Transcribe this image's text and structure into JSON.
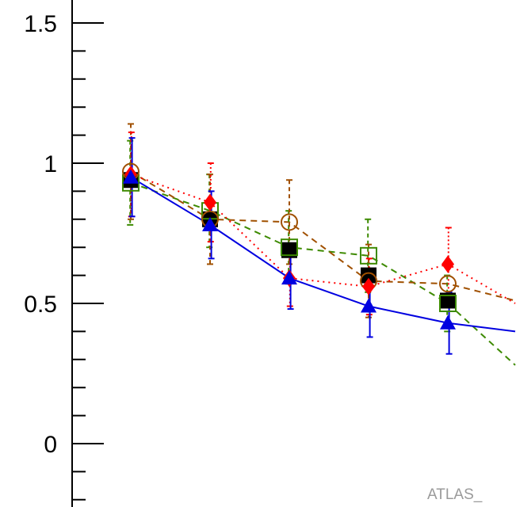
{
  "chart_data": {
    "type": "scatter",
    "title": "",
    "xlabel": "",
    "ylabel": "",
    "ylim": [
      -0.2,
      1.65
    ],
    "x": [
      1,
      2,
      3,
      4,
      5,
      5.85
    ],
    "y_major_ticks": [
      {
        "value": 0,
        "label": "0"
      },
      {
        "value": 0.5,
        "label": "0.5"
      },
      {
        "value": 1,
        "label": "1"
      },
      {
        "value": 1.5,
        "label": "1.5"
      }
    ],
    "y_minor_tick_step": 0.1,
    "grid": false,
    "legend": "none",
    "series": [
      {
        "marker": "filled-square",
        "color": "#000000",
        "line": "none",
        "values": [
          0.94,
          0.8,
          0.69,
          0.6,
          0.51,
          null
        ],
        "errors": [
          0.0,
          0.0,
          0.0,
          0.0,
          0.0,
          null
        ]
      },
      {
        "marker": "open-square",
        "color": "#3d8a00",
        "line": "dashed",
        "values": [
          0.93,
          0.83,
          0.7,
          0.67,
          0.5,
          0.28
        ],
        "errors": [
          0.15,
          0.13,
          0.13,
          0.13,
          0.1,
          null
        ]
      },
      {
        "marker": "open-circle",
        "color": "#a05000",
        "line": "dashed",
        "values": [
          0.97,
          0.8,
          0.79,
          0.58,
          0.57,
          0.51
        ],
        "errors": [
          0.17,
          0.16,
          0.15,
          0.13,
          0.0,
          null
        ]
      },
      {
        "marker": "filled-diamond",
        "color": "#ff0000",
        "line": "dotted",
        "values": [
          0.96,
          0.86,
          0.59,
          0.56,
          0.64,
          0.5
        ],
        "errors": [
          0.15,
          0.14,
          0.1,
          0.1,
          0.13,
          null
        ]
      },
      {
        "marker": "filled-triangle",
        "color": "#0000e0",
        "line": "solid",
        "values": [
          0.95,
          0.78,
          0.59,
          0.49,
          0.43,
          0.4
        ],
        "errors": [
          0.14,
          0.12,
          0.11,
          0.11,
          0.11,
          null
        ]
      }
    ]
  },
  "watermark": "ATLAS_"
}
